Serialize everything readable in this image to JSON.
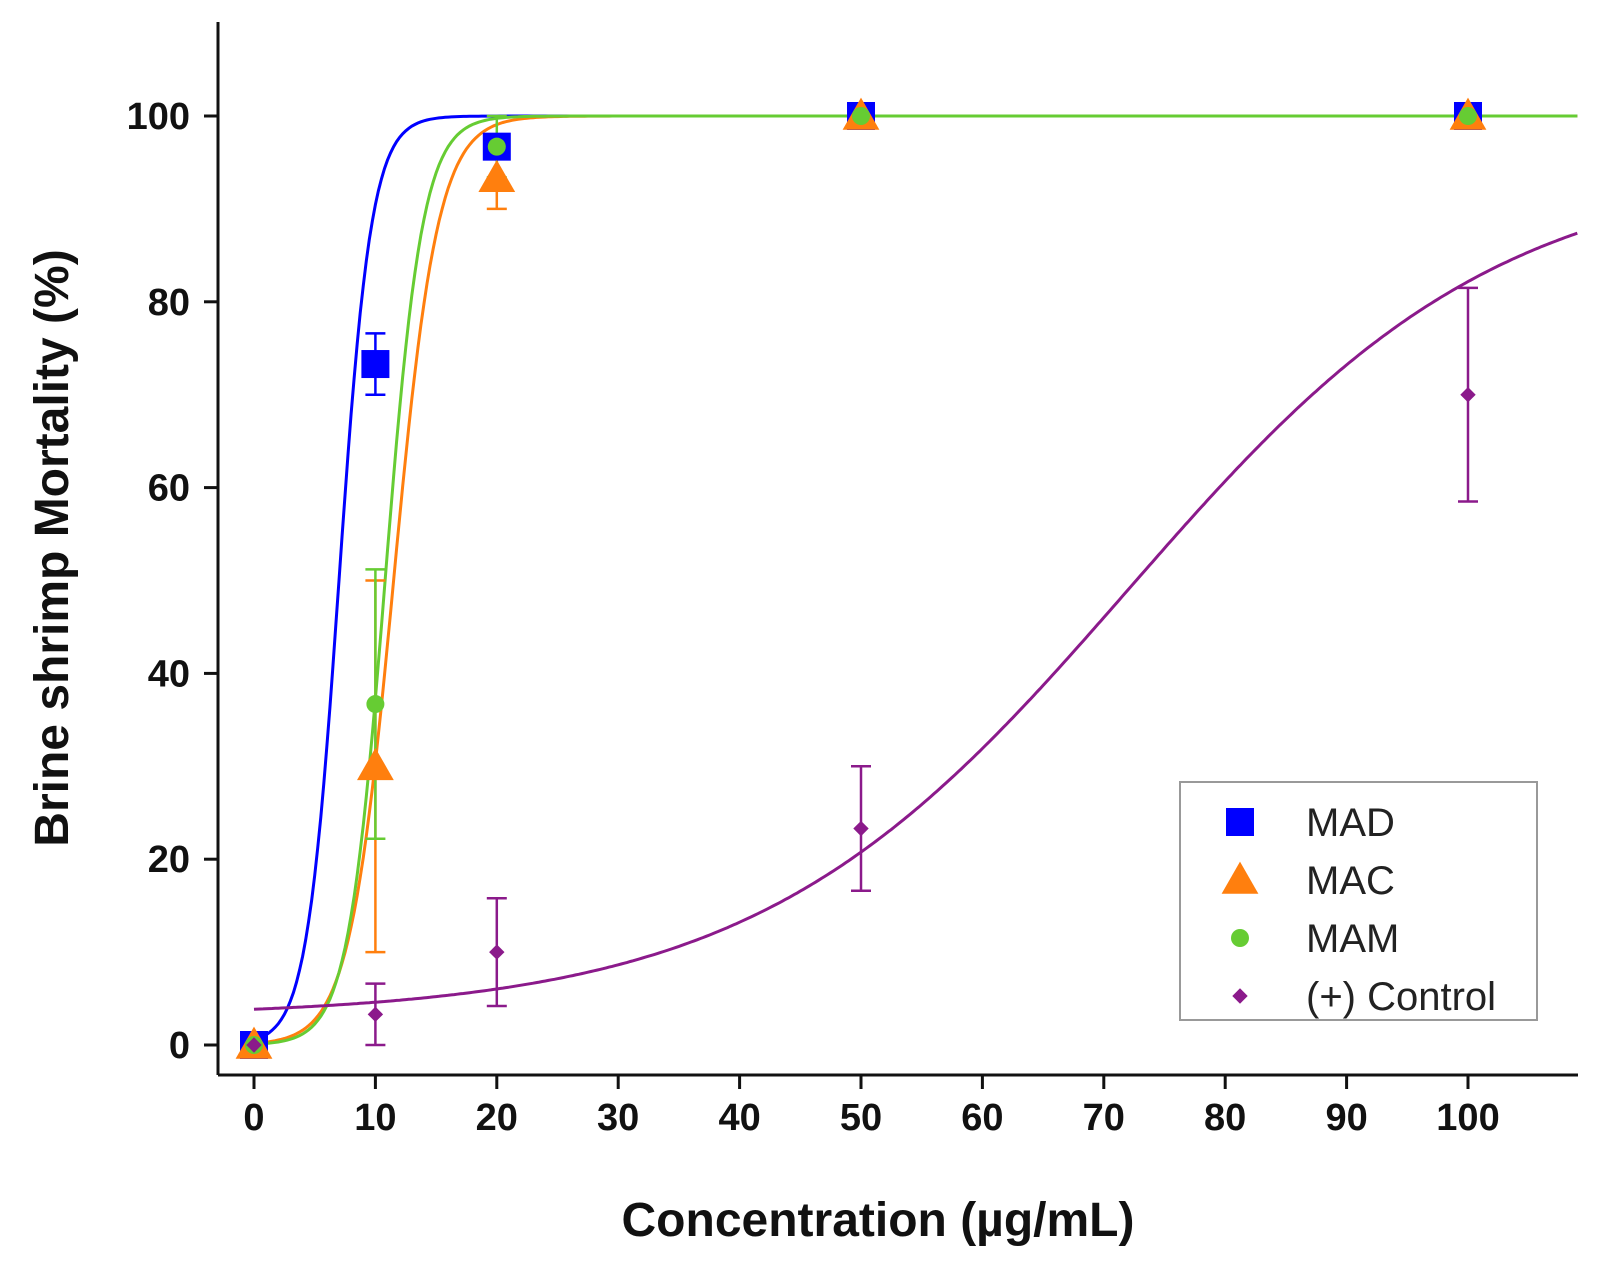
{
  "chart_data": {
    "type": "scatter",
    "title": "",
    "xlabel": "Concentration (µg/mL)",
    "ylabel": "Brine shrimp Mortality (%)",
    "xlim": [
      -3,
      109
    ],
    "ylim": [
      -3,
      110
    ],
    "x_ticks": [
      0,
      10,
      20,
      30,
      40,
      50,
      60,
      70,
      80,
      90,
      100
    ],
    "x_tick_labels": [
      "0",
      "10",
      "20",
      "30",
      "40",
      "50",
      "60",
      "70",
      "80",
      "90",
      "100"
    ],
    "y_ticks": [
      0,
      20,
      40,
      60,
      80,
      100
    ],
    "y_tick_labels": [
      "0",
      "20",
      "40",
      "60",
      "80",
      "100"
    ],
    "legend_position": "bottom-right",
    "series": [
      {
        "name": "MAD",
        "color": "#0000ff",
        "marker": "square",
        "x": [
          0,
          10,
          20,
          50,
          100
        ],
        "y": [
          0,
          73.3,
          96.7,
          100,
          100
        ],
        "error": [
          0,
          3.3,
          0,
          0,
          0
        ],
        "fit": {
          "type": "logistic",
          "ec50": 7.0,
          "slope": 0.75,
          "bottom": 0,
          "top": 100
        }
      },
      {
        "name": "MAC",
        "color": "#ff7f0e",
        "marker": "triangle",
        "x": [
          0,
          10,
          20,
          50,
          100
        ],
        "y": [
          0,
          30,
          93.3,
          100,
          100
        ],
        "error": [
          0,
          20,
          3.3,
          0,
          0
        ],
        "fit": {
          "type": "logistic",
          "ec50": 11.5,
          "slope": 0.55,
          "bottom": 0,
          "top": 100
        }
      },
      {
        "name": "MAM",
        "color": "#66cc33",
        "marker": "circle",
        "x": [
          0,
          10,
          20,
          50,
          100
        ],
        "y": [
          0,
          36.7,
          96.7,
          100,
          100
        ],
        "error": [
          0,
          14.5,
          3.3,
          0,
          0
        ],
        "fit": {
          "type": "logistic",
          "ec50": 10.8,
          "slope": 0.65,
          "bottom": 0,
          "top": 100
        }
      },
      {
        "name": "(+) Control",
        "color": "#8b1a8b",
        "marker": "diamond",
        "x": [
          0,
          10,
          20,
          50,
          100
        ],
        "y": [
          0,
          3.3,
          10,
          23.3,
          70
        ],
        "error": [
          0,
          3.3,
          5.8,
          6.7,
          11.5
        ],
        "fit": {
          "type": "logistic",
          "ec50": 72,
          "slope": 0.065,
          "bottom": 3,
          "top": 95
        }
      }
    ]
  }
}
